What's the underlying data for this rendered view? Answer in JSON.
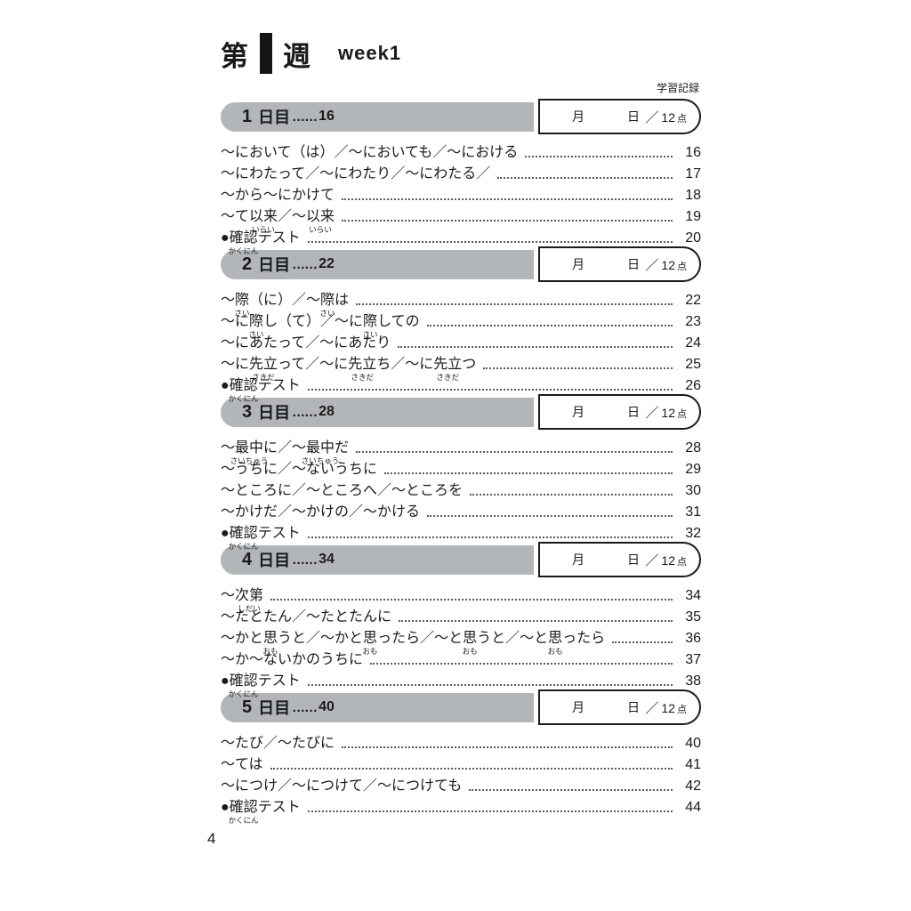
{
  "header": {
    "week_prefix": "第",
    "week_number": "1",
    "week_suffix": "週",
    "week_en": "week1",
    "record_label": "学習記録"
  },
  "record_box": {
    "month": "月",
    "day": "日",
    "score_slash": "／",
    "score_value": "12",
    "score_unit": "点"
  },
  "colors": {
    "day_bar_gray": "#b3b6b8",
    "text_black": "#1a1a1a",
    "background": "#ffffff"
  },
  "sections": [
    {
      "day_number": "1",
      "day_label": "日目",
      "dots": "……",
      "start_page": "16",
      "rows": [
        {
          "page": "16",
          "segments": [
            {
              "t": "～において（は）／～においても／～における"
            }
          ]
        },
        {
          "page": "17",
          "segments": [
            {
              "t": "～にわたって／～にわたり／～にわたる／"
            }
          ]
        },
        {
          "page": "18",
          "segments": [
            {
              "t": "～から～にかけて"
            }
          ]
        },
        {
          "page": "19",
          "segments": [
            {
              "t": "～て"
            },
            {
              "t": "以来",
              "r": "いらい"
            },
            {
              "t": "／～"
            },
            {
              "t": "以来",
              "r": "いらい"
            }
          ]
        },
        {
          "page": "20",
          "segments": [
            {
              "t": "●"
            },
            {
              "t": "確認",
              "r": "かくにん"
            },
            {
              "t": "テスト"
            }
          ]
        }
      ]
    },
    {
      "day_number": "2",
      "day_label": "日目",
      "dots": "……",
      "start_page": "22",
      "rows": [
        {
          "page": "22",
          "segments": [
            {
              "t": "～"
            },
            {
              "t": "際",
              "r": "さい"
            },
            {
              "t": "（に）／～"
            },
            {
              "t": "際",
              "r": "さい"
            },
            {
              "t": "は"
            }
          ]
        },
        {
          "page": "23",
          "segments": [
            {
              "t": "～に"
            },
            {
              "t": "際",
              "r": "さい"
            },
            {
              "t": "し（て）／～に"
            },
            {
              "t": "際",
              "r": "さい"
            },
            {
              "t": "しての"
            }
          ]
        },
        {
          "page": "24",
          "segments": [
            {
              "t": "～にあたって／～にあたり"
            }
          ]
        },
        {
          "page": "25",
          "segments": [
            {
              "t": "～に"
            },
            {
              "t": "先立",
              "r": "さきだ"
            },
            {
              "t": "って／～に"
            },
            {
              "t": "先立",
              "r": "さきだ"
            },
            {
              "t": "ち／～に"
            },
            {
              "t": "先立",
              "r": "さきだ"
            },
            {
              "t": "つ"
            }
          ]
        },
        {
          "page": "26",
          "segments": [
            {
              "t": "●"
            },
            {
              "t": "確認",
              "r": "かくにん"
            },
            {
              "t": "テスト"
            }
          ]
        }
      ]
    },
    {
      "day_number": "3",
      "day_label": "日目",
      "dots": "……",
      "start_page": "28",
      "rows": [
        {
          "page": "28",
          "segments": [
            {
              "t": "～"
            },
            {
              "t": "最中",
              "r": "さいちゅう"
            },
            {
              "t": "に／～"
            },
            {
              "t": "最中",
              "r": "さいちゅう"
            },
            {
              "t": "だ"
            }
          ]
        },
        {
          "page": "29",
          "segments": [
            {
              "t": "～うちに／～ないうちに"
            }
          ]
        },
        {
          "page": "30",
          "segments": [
            {
              "t": "～ところに／～ところへ／～ところを"
            }
          ]
        },
        {
          "page": "31",
          "segments": [
            {
              "t": "～かけだ／～かけの／～かける"
            }
          ]
        },
        {
          "page": "32",
          "segments": [
            {
              "t": "●"
            },
            {
              "t": "確認",
              "r": "かくにん"
            },
            {
              "t": "テスト"
            }
          ]
        }
      ]
    },
    {
      "day_number": "4",
      "day_label": "日目",
      "dots": "……",
      "start_page": "34",
      "rows": [
        {
          "page": "34",
          "segments": [
            {
              "t": "～"
            },
            {
              "t": "次第",
              "r": "しだい"
            }
          ]
        },
        {
          "page": "35",
          "segments": [
            {
              "t": "～たとたん／～たとたんに"
            }
          ]
        },
        {
          "page": "36",
          "segments": [
            {
              "t": "～かと"
            },
            {
              "t": "思",
              "r": "おも"
            },
            {
              "t": "うと／～かと"
            },
            {
              "t": "思",
              "r": "おも"
            },
            {
              "t": "ったら／～と"
            },
            {
              "t": "思",
              "r": "おも"
            },
            {
              "t": "うと／～と"
            },
            {
              "t": "思",
              "r": "おも"
            },
            {
              "t": "ったら"
            }
          ]
        },
        {
          "page": "37",
          "segments": [
            {
              "t": "～か～ないかのうちに"
            }
          ]
        },
        {
          "page": "38",
          "segments": [
            {
              "t": "●"
            },
            {
              "t": "確認",
              "r": "かくにん"
            },
            {
              "t": "テスト"
            }
          ]
        }
      ]
    },
    {
      "day_number": "5",
      "day_label": "日目",
      "dots": "……",
      "start_page": "40",
      "rows": [
        {
          "page": "40",
          "segments": [
            {
              "t": "～たび／～たびに"
            }
          ]
        },
        {
          "page": "41",
          "segments": [
            {
              "t": "～ては"
            }
          ]
        },
        {
          "page": "42",
          "segments": [
            {
              "t": "～につけ／～につけて／～につけても"
            }
          ]
        },
        {
          "page": "44",
          "segments": [
            {
              "t": "●"
            },
            {
              "t": "確認",
              "r": "かくにん"
            },
            {
              "t": "テスト"
            }
          ]
        }
      ]
    }
  ],
  "footer": {
    "page_number": "4"
  }
}
